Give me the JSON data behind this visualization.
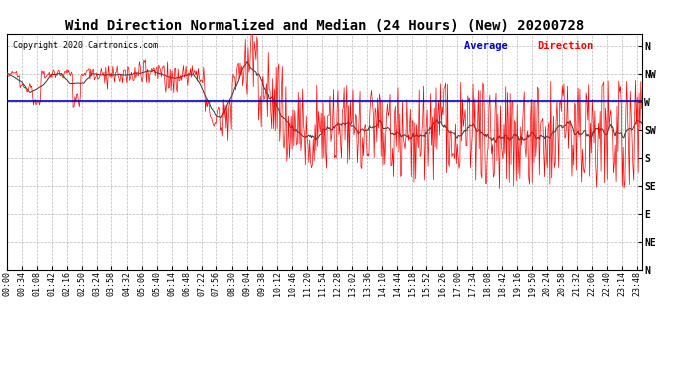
{
  "title": "Wind Direction Normalized and Median (24 Hours) (New) 20200728",
  "copyright_text": "Copyright 2020 Cartronics.com",
  "legend_avg_label": "Average Direction",
  "background_color": "#ffffff",
  "plot_bg_color": "#ffffff",
  "grid_color": "#aaaaaa",
  "red_line_color": "#ff0000",
  "blue_line_color": "#0000cc",
  "dark_line_color": "#333333",
  "y_labels": [
    "N",
    "NW",
    "W",
    "SW",
    "S",
    "SE",
    "E",
    "NE",
    "N"
  ],
  "y_values": [
    360,
    315,
    270,
    225,
    180,
    135,
    90,
    45,
    0
  ],
  "ylim": [
    0,
    380
  ],
  "average_direction": 272,
  "title_fontsize": 10,
  "tick_fontsize": 6,
  "num_points": 720,
  "tick_interval_minutes": 34,
  "total_minutes": 1438
}
